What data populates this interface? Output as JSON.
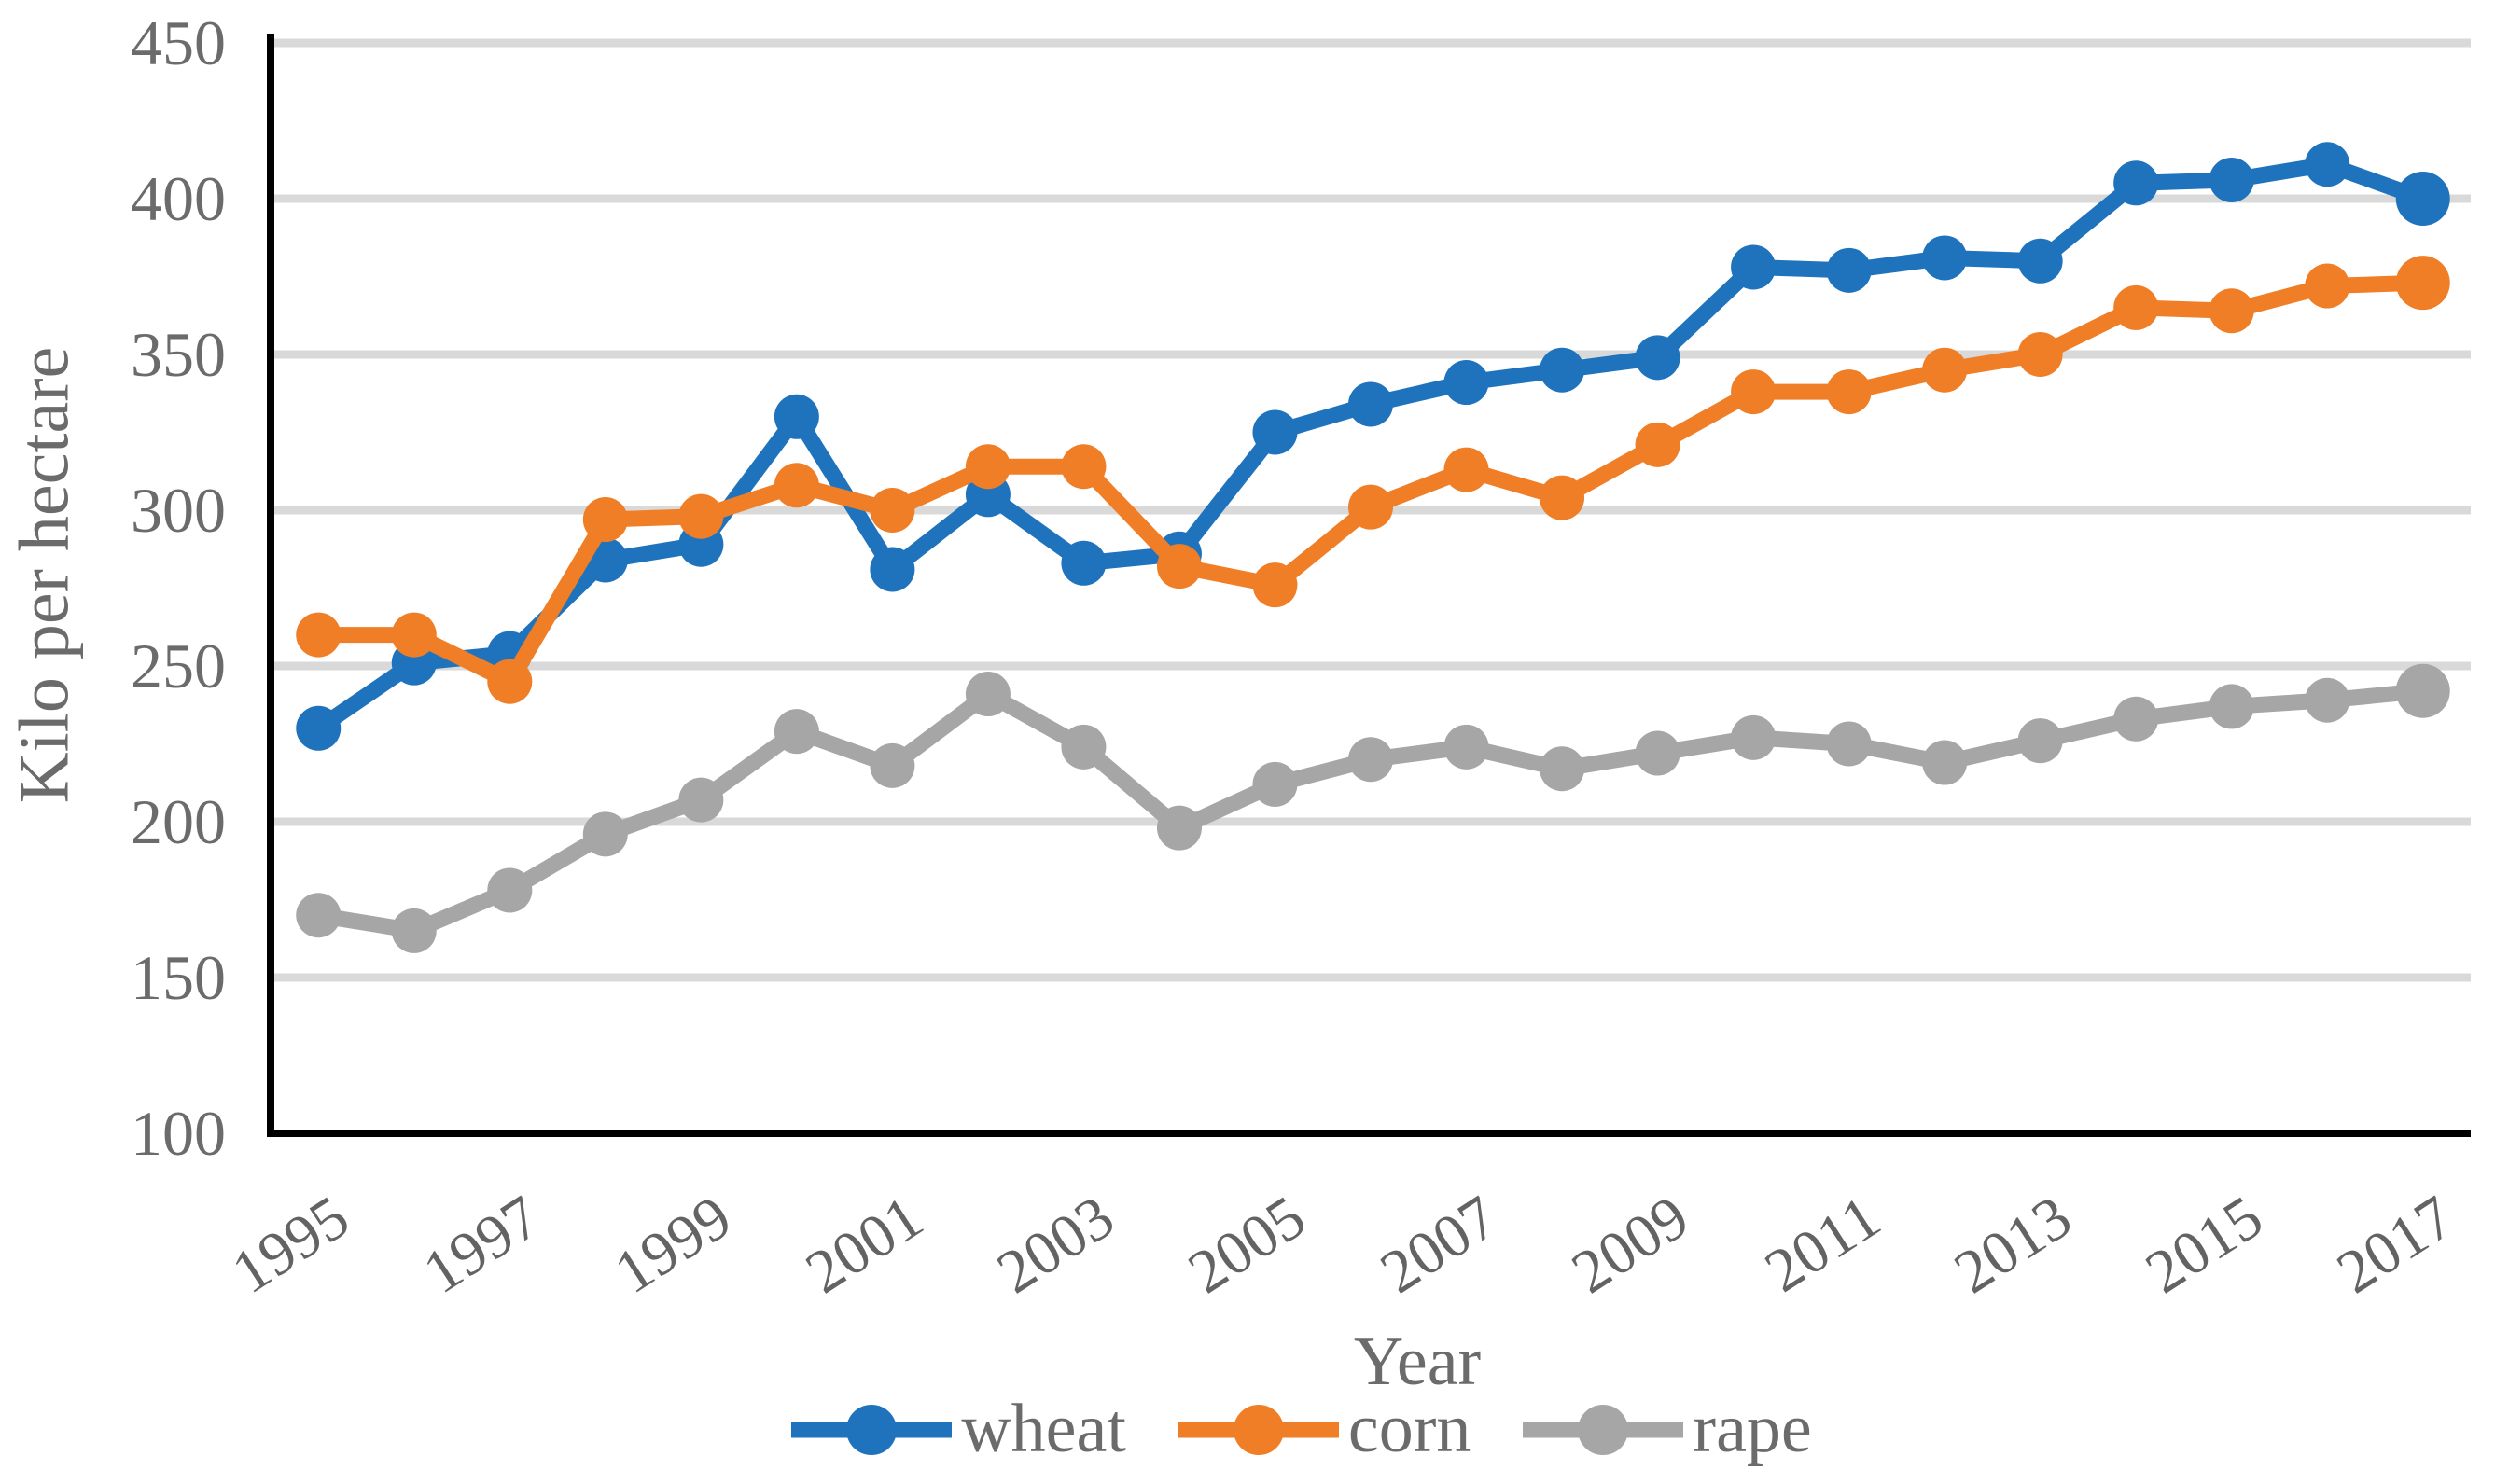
{
  "chart_data": {
    "type": "line",
    "title": "",
    "xlabel": "Year",
    "ylabel": "Kilo per hectare",
    "categories": [
      1995,
      1996,
      1997,
      1998,
      1999,
      2000,
      2001,
      2002,
      2003,
      2004,
      2005,
      2006,
      2007,
      2008,
      2009,
      2010,
      2011,
      2012,
      2013,
      2014,
      2015,
      2016,
      2017
    ],
    "x_tick_labels": [
      "1995",
      "1997",
      "1999",
      "2001",
      "2003",
      "2005",
      "2007",
      "2009",
      "2011",
      "2013",
      "2015",
      "2017"
    ],
    "y_ticks": [
      100,
      150,
      200,
      250,
      300,
      350,
      400,
      450
    ],
    "ylim": [
      100,
      450
    ],
    "grid": true,
    "legend_position": "bottom-center",
    "series": [
      {
        "name": "wheat",
        "color": "#1F73BD",
        "values": [
          230,
          251,
          254,
          284,
          289,
          330,
          281,
          305,
          283,
          286,
          325,
          334,
          341,
          345,
          349,
          378,
          377,
          381,
          380,
          405,
          406,
          411,
          400
        ]
      },
      {
        "name": "corn",
        "color": "#F07E26",
        "values": [
          260,
          260,
          245,
          297,
          298,
          308,
          300,
          314,
          314,
          282,
          276,
          301,
          313,
          304,
          321,
          338,
          338,
          345,
          350,
          365,
          364,
          372,
          373
        ]
      },
      {
        "name": "rape",
        "color": "#A6A6A6",
        "values": [
          170,
          165,
          178,
          196,
          207,
          229,
          218,
          241,
          224,
          198,
          212,
          220,
          224,
          217,
          222,
          227,
          225,
          219,
          226,
          233,
          237,
          239,
          242
        ]
      }
    ]
  },
  "colors": {
    "background": "#FFFFFF",
    "gridline": "#D9D9D9",
    "axis": "#000000",
    "label_text": "#6B6B6B"
  }
}
